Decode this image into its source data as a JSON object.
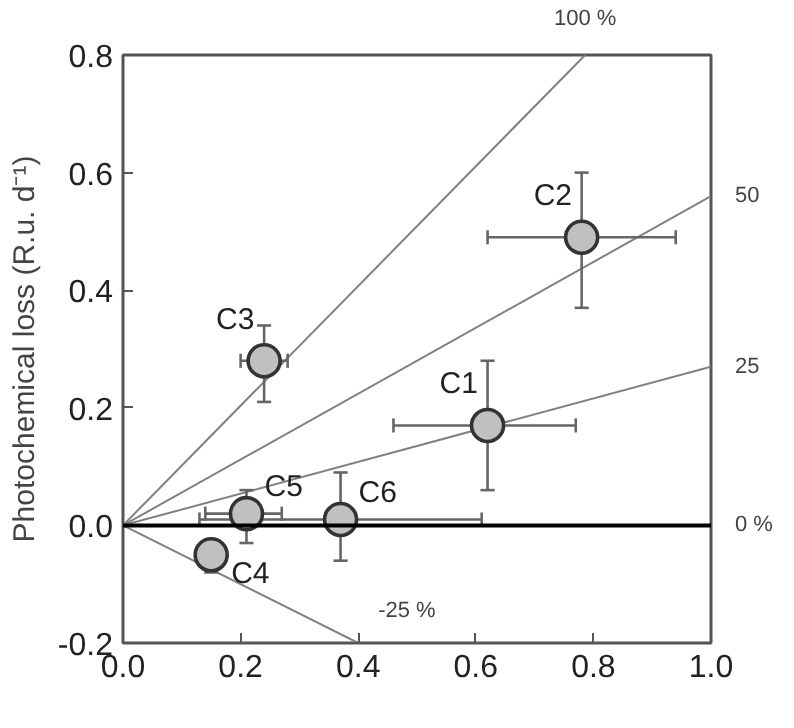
{
  "chart_data": {
    "type": "scatter",
    "ylabel": "Photochemical loss (R.u. d⁻¹)",
    "xlim": [
      0,
      1.0
    ],
    "ylim": [
      -0.2,
      0.8
    ],
    "xticks": [
      {
        "value": 0,
        "label": "0.0"
      },
      0.2,
      0.4,
      0.6,
      0.8,
      {
        "value": 1,
        "label": "1.0"
      }
    ],
    "yticks": [
      -0.2,
      {
        "value": 0,
        "label": "0.0"
      },
      0.2,
      0.4,
      0.6,
      0.8
    ],
    "grid": false,
    "series": [
      {
        "name": "100 %",
        "type": "line",
        "color": "#808080",
        "x": [
          0,
          0.786
        ],
        "values": [
          0,
          0.8
        ]
      },
      {
        "name": "50",
        "type": "line",
        "color": "#808080",
        "x": [
          0,
          1.0
        ],
        "values": [
          0,
          0.56
        ]
      },
      {
        "name": "25",
        "type": "line",
        "color": "#808080",
        "x": [
          0,
          1.0
        ],
        "values": [
          0,
          0.27
        ]
      },
      {
        "name": "-25 %",
        "type": "line",
        "color": "#808080",
        "x": [
          0,
          0.4
        ],
        "values": [
          0,
          -0.2
        ]
      },
      {
        "marker": "circle",
        "color": "#c0c0c0",
        "x": [
          0.62,
          0.78,
          0.24,
          0.15,
          0.21,
          0.37
        ],
        "values": [
          0.17,
          0.49,
          0.28,
          -0.05,
          0.02,
          0.01
        ],
        "errors": [
          [
            0.06,
            0.28
          ],
          [
            0.37,
            0.6
          ],
          [
            0.21,
            0.34
          ],
          [
            -0.08,
            -0.03
          ],
          [
            -0.03,
            0.06
          ],
          [
            -0.06,
            0.09
          ]
        ],
        "xerrors": [
          [
            0.46,
            0.77
          ],
          [
            0.62,
            0.94
          ],
          [
            0.2,
            0.28
          ],
          [
            0.13,
            0.16
          ],
          [
            0.14,
            0.27
          ],
          [
            0.13,
            0.61
          ]
        ]
      }
    ],
    "ref_lines": [
      {
        "axis": "y",
        "value": 0,
        "label": "0 %",
        "color": "#000000"
      }
    ],
    "annotations": [
      {
        "text": "C1",
        "x": 0.62,
        "y": 0.17
      },
      {
        "text": "C2",
        "x": 0.78,
        "y": 0.49
      },
      {
        "text": "C3",
        "x": 0.24,
        "y": 0.28
      },
      {
        "text": "C4",
        "x": 0.15,
        "y": -0.05
      },
      {
        "text": "C5",
        "x": 0.21,
        "y": 0.02
      },
      {
        "text": "C6",
        "x": 0.37,
        "y": 0.01
      }
    ]
  }
}
